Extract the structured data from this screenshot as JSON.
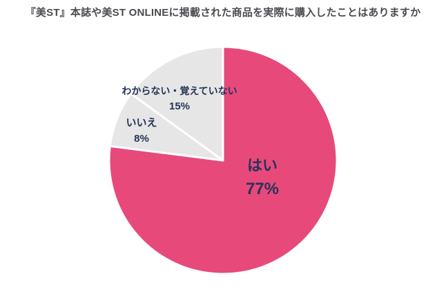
{
  "title": {
    "text": "『美ST』本誌や美ST ONLINEに掲載された商品を実際に購入したことはありますか",
    "color": "#4a4a50"
  },
  "chart_data": {
    "type": "pie",
    "title": "『美ST』本誌や美ST ONLINEに掲載された商品を実際に購入したことはありますか",
    "start_angle_deg": 0,
    "direction": "clockwise",
    "legend": "none",
    "label_placement": "on-slices",
    "border_color": "#ffffff",
    "border_width": 3,
    "label_color": "#263357",
    "background": "#ffffff",
    "slices": [
      {
        "label": "はい",
        "value": 77,
        "pct_label": "77%",
        "color": "#e7497b"
      },
      {
        "label": "いいえ",
        "value": 8,
        "pct_label": "8%",
        "color": "#e6e6e6"
      },
      {
        "label": "わからない・覚えていない",
        "value": 15,
        "pct_label": "15%",
        "color": "#e6e6e6"
      }
    ]
  }
}
